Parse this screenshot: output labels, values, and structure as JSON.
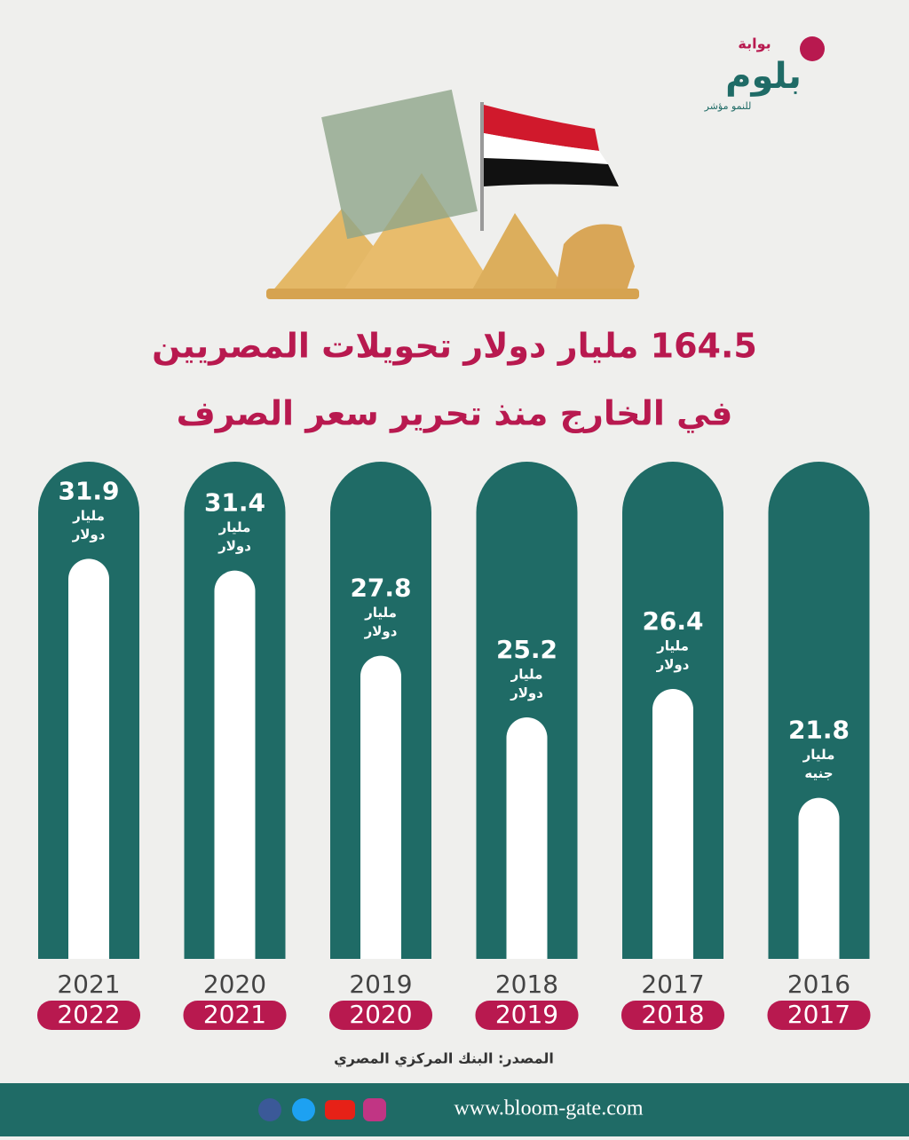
{
  "logo": {
    "top": "بوابة",
    "name": "بلوم",
    "tagline": "للنمو مؤشر"
  },
  "chart_data": {
    "type": "bar",
    "title": "164.5 مليار دولار تحويلات المصريين",
    "subtitle": "في الخارج منذ تحرير سعر الصرف",
    "categories": [
      {
        "from": "2021",
        "to": "2022"
      },
      {
        "from": "2020",
        "to": "2021"
      },
      {
        "from": "2019",
        "to": "2020"
      },
      {
        "from": "2018",
        "to": "2019"
      },
      {
        "from": "2017",
        "to": "2018"
      },
      {
        "from": "2016",
        "to": "2017"
      }
    ],
    "values": [
      31.9,
      31.4,
      27.8,
      25.2,
      26.4,
      21.8
    ],
    "unit_labels": [
      [
        "مليار",
        "دولار"
      ],
      [
        "مليار",
        "دولار"
      ],
      [
        "مليار",
        "دولار"
      ],
      [
        "مليار",
        "دولار"
      ],
      [
        "مليار",
        "دولار"
      ],
      [
        "مليار",
        "جنيه"
      ]
    ],
    "ylim": [
      15,
      33
    ],
    "color": "#ffffff",
    "pillar_color": "#1f6b66",
    "accent_color": "#b8194f",
    "source": "المصدر: البنك المركزي المصري"
  },
  "footer": {
    "website": "www.bloom-gate.com"
  }
}
